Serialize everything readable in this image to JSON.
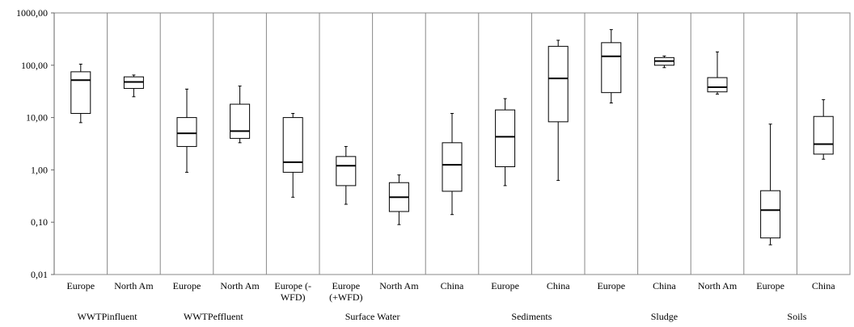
{
  "chart_data": {
    "type": "boxplot",
    "y_scale": "log",
    "ylim": [
      0.01,
      1000
    ],
    "y_ticks": [
      {
        "value": 1000,
        "label": "1000,00"
      },
      {
        "value": 100,
        "label": "100,00"
      },
      {
        "value": 10,
        "label": "10,00"
      },
      {
        "value": 1,
        "label": "1,00"
      },
      {
        "value": 0.1,
        "label": "0,10"
      },
      {
        "value": 0.01,
        "label": "0,01"
      }
    ],
    "grid": false,
    "legend": "none",
    "categories": [
      {
        "label": "Europe",
        "group": "WWTP influent",
        "min": 8,
        "q1": 12,
        "median": 52,
        "q3": 75,
        "max": 105
      },
      {
        "label": "North Am",
        "group": "WWTP influent",
        "min": 25,
        "q1": 36,
        "median": 48,
        "q3": 60,
        "max": 65
      },
      {
        "label": "Europe",
        "group": "WWTP effluent",
        "min": 0.9,
        "q1": 2.8,
        "median": 5,
        "q3": 10,
        "max": 35
      },
      {
        "label": "North Am",
        "group": "WWTP effluent",
        "min": 3.3,
        "q1": 4,
        "median": 5.5,
        "q3": 18,
        "max": 40
      },
      {
        "label": "Europe (-WFD)",
        "group": "Surface Water",
        "min": 0.3,
        "q1": 0.9,
        "median": 1.4,
        "q3": 10,
        "max": 12
      },
      {
        "label": "Europe (+WFD)",
        "group": "Surface Water",
        "min": 0.22,
        "q1": 0.5,
        "median": 1.2,
        "q3": 1.8,
        "max": 2.8
      },
      {
        "label": "North Am",
        "group": "Surface Water",
        "min": 0.09,
        "q1": 0.16,
        "median": 0.3,
        "q3": 0.57,
        "max": 0.8
      },
      {
        "label": "China",
        "group": "Surface Water",
        "min": 0.14,
        "q1": 0.39,
        "median": 1.25,
        "q3": 3.3,
        "max": 12
      },
      {
        "label": "Europe",
        "group": "Sediments",
        "min": 0.5,
        "q1": 1.15,
        "median": 4.3,
        "q3": 14,
        "max": 23
      },
      {
        "label": "China",
        "group": "Sediments",
        "min": 0.63,
        "q1": 8.3,
        "median": 56,
        "q3": 230,
        "max": 300
      },
      {
        "label": "Europe",
        "group": "Sludge",
        "min": 19,
        "q1": 30,
        "median": 148,
        "q3": 270,
        "max": 480
      },
      {
        "label": "China",
        "group": "Sludge",
        "min": 90,
        "q1": 100,
        "median": 120,
        "q3": 140,
        "max": 150
      },
      {
        "label": "North Am",
        "group": "Sludge",
        "min": 28,
        "q1": 31,
        "median": 38,
        "q3": 58,
        "max": 180
      },
      {
        "label": "Europe",
        "group": "Soils",
        "min": 0.037,
        "q1": 0.05,
        "median": 0.17,
        "q3": 0.4,
        "max": 7.5
      },
      {
        "label": "China",
        "group": "Soils",
        "min": 1.6,
        "q1": 2,
        "median": 3.1,
        "q3": 10.5,
        "max": 22
      }
    ],
    "category_labels": [
      [
        "Europe"
      ],
      [
        "North Am"
      ],
      [
        "Europe"
      ],
      [
        "North Am"
      ],
      [
        "Europe (-",
        "WFD)"
      ],
      [
        "Europe",
        "(+WFD)"
      ],
      [
        "North Am"
      ],
      [
        "China"
      ],
      [
        "Europe"
      ],
      [
        "China"
      ],
      [
        "Europe"
      ],
      [
        "China"
      ],
      [
        "North Am"
      ],
      [
        "Europe"
      ],
      [
        "China"
      ]
    ],
    "groups": [
      {
        "name": "WWTPinfluent",
        "center_index": 0.5
      },
      {
        "name": "WWTPeffluent",
        "center_index": 2.5
      },
      {
        "name": "Surface Water",
        "center_index": 5.5
      },
      {
        "name": "Sediments",
        "center_index": 8.5
      },
      {
        "name": "Sludge",
        "center_index": 11
      },
      {
        "name": "Soils",
        "center_index": 13.5
      }
    ]
  }
}
